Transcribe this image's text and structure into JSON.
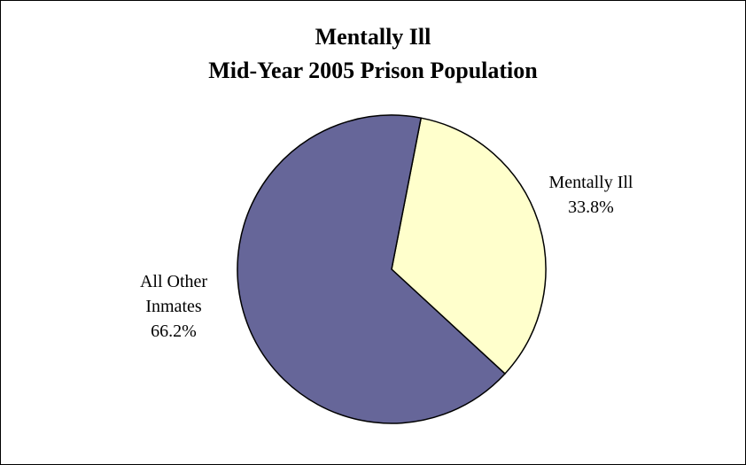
{
  "chart_data": {
    "type": "pie",
    "title_lines": [
      "Mentally Ill",
      "Mid-Year 2005 Prison Population"
    ],
    "slices": [
      {
        "label_lines": [
          "Mentally Ill"
        ],
        "value_label": "33.8%",
        "value": 33.8,
        "color": "#FFFFCC"
      },
      {
        "label_lines": [
          "All Other",
          "Inmates"
        ],
        "value_label": "66.2%",
        "value": 66.2,
        "color": "#666699"
      }
    ],
    "legend": "none"
  }
}
